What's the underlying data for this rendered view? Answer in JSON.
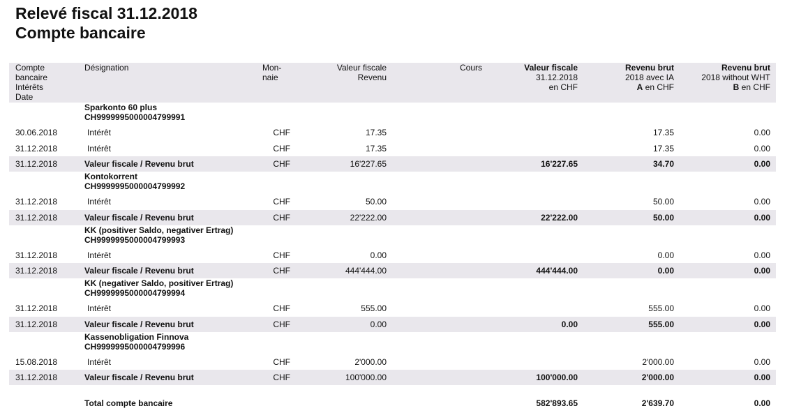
{
  "title": [
    "Relevé fiscal 31.12.2018",
    "Compte bancaire"
  ],
  "header": {
    "account": [
      "Compte",
      "bancaire",
      "Intérêts",
      "Date"
    ],
    "designation": "Désignation",
    "currency": [
      "Mon-",
      "naie"
    ],
    "value": [
      "Valeur fiscale",
      "Revenu"
    ],
    "rate": "Cours",
    "tax_value": [
      "Valeur fiscale",
      "31.12.2018",
      "en CHF"
    ],
    "revenue_a": {
      "title": "Revenu brut",
      "year": "2018 avec IA",
      "key": "A",
      "unit": "en CHF"
    },
    "revenue_b": {
      "title": "Revenu brut",
      "year": "2018 without WHT",
      "key": "B",
      "unit": "en CHF"
    }
  },
  "groups": [
    {
      "name": "Sparkonto 60 plus",
      "account": "CH9999995000004799991",
      "rows": [
        {
          "date": "30.06.2018",
          "label": "Intérêt",
          "currency": "CHF",
          "value": "17.35",
          "revenue_a": "17.35",
          "revenue_b": "0.00"
        },
        {
          "date": "31.12.2018",
          "label": "Intérêt",
          "currency": "CHF",
          "value": "17.35",
          "revenue_a": "17.35",
          "revenue_b": "0.00"
        },
        {
          "date": "31.12.2018",
          "label": "Valeur fiscale / Revenu brut",
          "currency": "CHF",
          "value": "16'227.65",
          "tax_value": "16'227.65",
          "revenue_a": "34.70",
          "revenue_b": "0.00"
        }
      ]
    },
    {
      "name": "Kontokorrent",
      "account": "CH9999995000004799992",
      "rows": [
        {
          "date": "31.12.2018",
          "label": "Intérêt",
          "currency": "CHF",
          "value": "50.00",
          "revenue_a": "50.00",
          "revenue_b": "0.00"
        },
        {
          "date": "31.12.2018",
          "label": "Valeur fiscale / Revenu brut",
          "currency": "CHF",
          "value": "22'222.00",
          "tax_value": "22'222.00",
          "revenue_a": "50.00",
          "revenue_b": "0.00"
        }
      ]
    },
    {
      "name": "KK (positiver Saldo, negativer Ertrag)",
      "account": "CH9999995000004799993",
      "rows": [
        {
          "date": "31.12.2018",
          "label": "Intérêt",
          "currency": "CHF",
          "value": "0.00",
          "revenue_a": "0.00",
          "revenue_b": "0.00"
        },
        {
          "date": "31.12.2018",
          "label": "Valeur fiscale / Revenu brut",
          "currency": "CHF",
          "value": "444'444.00",
          "tax_value": "444'444.00",
          "revenue_a": "0.00",
          "revenue_b": "0.00"
        }
      ]
    },
    {
      "name": "KK (negativer Saldo, positiver Ertrag)",
      "account": "CH9999995000004799994",
      "rows": [
        {
          "date": "31.12.2018",
          "label": "Intérêt",
          "currency": "CHF",
          "value": "555.00",
          "revenue_a": "555.00",
          "revenue_b": "0.00"
        },
        {
          "date": "31.12.2018",
          "label": "Valeur fiscale / Revenu brut",
          "currency": "CHF",
          "value": "0.00",
          "tax_value": "0.00",
          "revenue_a": "555.00",
          "revenue_b": "0.00"
        }
      ]
    },
    {
      "name": "Kassenobligation Finnova",
      "account": "CH9999995000004799996",
      "rows": [
        {
          "date": "15.08.2018",
          "label": "Intérêt",
          "currency": "CHF",
          "value": "2'000.00",
          "revenue_a": "2'000.00",
          "revenue_b": "0.00"
        },
        {
          "date": "31.12.2018",
          "label": "Valeur fiscale / Revenu brut",
          "currency": "CHF",
          "value": "100'000.00",
          "tax_value": "100'000.00",
          "revenue_a": "2'000.00",
          "revenue_b": "0.00"
        }
      ]
    }
  ],
  "total": {
    "label": "Total compte bancaire",
    "tax_value": "582'893.65",
    "revenue_a": "2'639.70",
    "revenue_b": "0.00"
  }
}
